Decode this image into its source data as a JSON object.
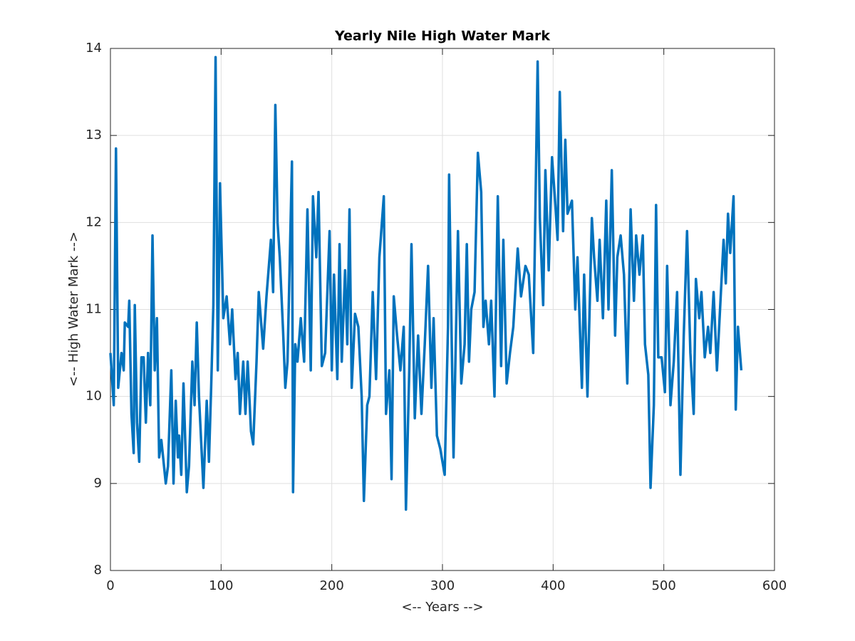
{
  "chart_data": {
    "type": "line",
    "title": "Yearly Nile High Water Mark",
    "xlabel": "<-- Years -->",
    "ylabel": "<-- High Water Mark -->",
    "color": "#0072bd",
    "grid": true,
    "xlim": [
      0,
      600
    ],
    "xticks": [
      0,
      100,
      200,
      300,
      400,
      500,
      600
    ],
    "ylim": [
      8,
      14
    ],
    "yticks": [
      8,
      9,
      10,
      11,
      12,
      13,
      14
    ],
    "x": [
      0,
      3,
      5,
      7,
      10,
      12,
      13,
      16,
      17,
      19,
      21,
      22,
      24,
      26,
      28,
      30,
      32,
      34,
      36,
      38,
      40,
      42,
      44,
      46,
      50,
      52,
      55,
      57,
      59,
      61,
      62,
      64,
      66,
      69,
      71,
      74,
      76,
      78,
      80,
      84,
      87,
      89,
      91,
      93,
      95,
      97,
      99,
      102,
      105,
      108,
      110,
      113,
      115,
      117,
      120,
      122,
      124,
      127,
      129,
      132,
      134,
      138,
      141,
      145,
      147,
      149,
      151,
      153,
      156,
      158,
      160,
      164,
      165,
      167,
      169,
      172,
      175,
      178,
      181,
      183,
      186,
      188,
      191,
      194,
      198,
      200,
      202,
      205,
      207,
      209,
      212,
      214,
      216,
      218,
      221,
      224,
      227,
      229,
      232,
      234,
      237,
      240,
      243,
      247,
      249,
      252,
      254,
      256,
      259,
      262,
      265,
      267,
      270,
      272,
      275,
      278,
      281,
      284,
      287,
      290,
      292,
      295,
      298,
      302,
      305,
      306,
      310,
      312,
      314,
      317,
      320,
      322,
      324,
      326,
      329,
      332,
      335,
      337,
      339,
      342,
      344,
      347,
      350,
      353,
      355,
      358,
      361,
      364,
      368,
      371,
      375,
      378,
      382,
      386,
      388,
      391,
      393,
      396,
      399,
      402,
      404,
      406,
      409,
      411,
      413,
      417,
      420,
      422,
      426,
      428,
      431,
      435,
      437,
      440,
      442,
      445,
      448,
      450,
      453,
      456,
      458,
      461,
      464,
      467,
      470,
      473,
      475,
      478,
      481,
      483,
      486,
      488,
      491,
      493,
      495,
      498,
      501,
      503,
      506,
      509,
      512,
      515,
      518,
      521,
      524,
      527,
      529,
      532,
      534,
      537,
      540,
      542,
      545,
      548,
      551,
      554,
      556,
      558,
      560,
      563,
      565,
      567,
      570
    ],
    "values": [
      10.5,
      9.9,
      12.85,
      10.1,
      10.5,
      10.3,
      10.85,
      10.8,
      11.1,
      9.8,
      9.35,
      11.05,
      9.7,
      9.25,
      10.45,
      10.45,
      9.7,
      10.5,
      9.9,
      11.85,
      10.3,
      10.9,
      9.3,
      9.5,
      9.0,
      9.2,
      10.3,
      9.0,
      9.95,
      9.3,
      9.55,
      9.1,
      10.15,
      8.9,
      9.2,
      10.4,
      9.9,
      10.85,
      10.0,
      8.95,
      9.95,
      9.25,
      10.1,
      11.05,
      13.9,
      10.3,
      12.45,
      10.9,
      11.15,
      10.6,
      11.0,
      10.2,
      10.5,
      9.8,
      10.4,
      9.8,
      10.4,
      9.6,
      9.45,
      10.4,
      11.2,
      10.55,
      11.15,
      11.8,
      11.2,
      13.35,
      12.0,
      11.6,
      10.75,
      10.1,
      10.4,
      12.7,
      8.9,
      10.6,
      10.4,
      10.9,
      10.4,
      12.15,
      10.3,
      12.3,
      11.6,
      12.35,
      10.35,
      10.5,
      11.9,
      10.3,
      11.4,
      10.2,
      11.75,
      10.4,
      11.45,
      10.6,
      12.15,
      10.1,
      10.95,
      10.8,
      10.0,
      8.8,
      9.9,
      10.0,
      11.2,
      10.2,
      11.6,
      12.3,
      9.8,
      10.3,
      9.05,
      11.15,
      10.7,
      10.3,
      10.8,
      8.7,
      10.3,
      11.75,
      9.75,
      10.7,
      9.8,
      10.6,
      11.5,
      10.1,
      10.9,
      9.55,
      9.4,
      9.1,
      10.8,
      12.55,
      9.3,
      10.6,
      11.9,
      10.15,
      10.6,
      11.75,
      10.4,
      11.0,
      11.2,
      12.8,
      12.35,
      10.8,
      11.1,
      10.6,
      11.1,
      10.0,
      12.3,
      10.35,
      11.8,
      10.15,
      10.5,
      10.8,
      11.7,
      11.15,
      11.5,
      11.4,
      10.5,
      13.85,
      12.05,
      11.05,
      12.6,
      11.45,
      12.75,
      12.2,
      11.8,
      13.5,
      11.9,
      12.95,
      12.1,
      12.25,
      11.0,
      11.6,
      10.1,
      11.4,
      10.0,
      12.05,
      11.6,
      11.1,
      11.8,
      10.9,
      12.25,
      11.0,
      12.6,
      10.7,
      11.6,
      11.85,
      11.4,
      10.15,
      12.15,
      11.1,
      11.85,
      11.4,
      11.85,
      10.6,
      10.25,
      8.95,
      9.9,
      12.2,
      10.45,
      10.45,
      10.05,
      11.5,
      9.9,
      10.4,
      11.2,
      9.1,
      10.7,
      11.9,
      10.5,
      9.8,
      11.35,
      10.9,
      11.2,
      10.45,
      10.8,
      10.5,
      11.2,
      10.3,
      11.05,
      11.8,
      11.3,
      12.1,
      11.65,
      12.3,
      9.85,
      10.8,
      10.3
    ]
  }
}
